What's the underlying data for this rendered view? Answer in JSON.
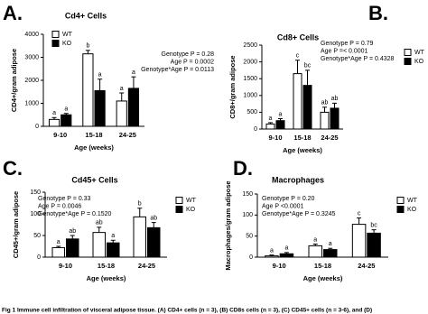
{
  "chart_data": [
    {
      "type": "bar",
      "panel": "A.",
      "title": "Cd4+ Cells",
      "ylabel": "CD4+/gram adipose",
      "xlabel": "Age (weeks)",
      "categories": [
        "9-10",
        "15-18",
        "24-25"
      ],
      "series": [
        {
          "name": "WT",
          "color": "#ffffff",
          "values": [
            300,
            3150,
            1100
          ],
          "errors": [
            80,
            150,
            350
          ],
          "letters": [
            "a",
            "b",
            "a"
          ]
        },
        {
          "name": "KO",
          "color": "#000000",
          "values": [
            500,
            1550,
            1650
          ],
          "errors": [
            60,
            500,
            500
          ],
          "letters": [
            "a",
            "a",
            "a"
          ]
        }
      ],
      "ylim": [
        0,
        4000
      ],
      "yticks": [
        0,
        1000,
        2000,
        3000,
        4000
      ],
      "stats": [
        "Genotype P = 0.28",
        "Age P = 0.0002",
        "Genotype*Age P = 0.0113"
      ]
    },
    {
      "type": "bar",
      "panel": "B.",
      "title": "Cd8+ Cells",
      "ylabel": "CD8+/gram adipose",
      "xlabel": "Age (weeks)",
      "categories": [
        "9-10",
        "15-18",
        "24-25"
      ],
      "series": [
        {
          "name": "WT",
          "color": "#ffffff",
          "values": [
            150,
            1650,
            500
          ],
          "errors": [
            40,
            400,
            150
          ],
          "letters": [
            "a",
            "c",
            "ab"
          ]
        },
        {
          "name": "KO",
          "color": "#000000",
          "values": [
            250,
            1300,
            620
          ],
          "errors": [
            60,
            450,
            150
          ],
          "letters": [
            "a",
            "bc",
            "ab"
          ]
        }
      ],
      "ylim": [
        0,
        2500
      ],
      "yticks": [
        0,
        500,
        1000,
        1500,
        2000,
        2500
      ],
      "stats": [
        "Genotype P = 0.79",
        "Age P =< 0.0001",
        "Genotype*Age P = 0.4328"
      ]
    },
    {
      "type": "bar",
      "panel": "C.",
      "title": "Cd45+ Cells",
      "ylabel": "CD45+/gram adipose",
      "xlabel": "Age (weeks)",
      "categories": [
        "9-10",
        "15-18",
        "24-25"
      ],
      "series": [
        {
          "name": "WT",
          "color": "#ffffff",
          "values": [
            22,
            57,
            93
          ],
          "errors": [
            3,
            12,
            20
          ],
          "letters": [
            "a",
            "ab",
            "b"
          ]
        },
        {
          "name": "KO",
          "color": "#000000",
          "values": [
            42,
            33,
            68
          ],
          "errors": [
            8,
            6,
            12
          ],
          "letters": [
            "ab",
            "a",
            "ab"
          ]
        }
      ],
      "ylim": [
        0,
        150
      ],
      "yticks": [
        0,
        50,
        100,
        150
      ],
      "stats": [
        "Genotype P = 0.33",
        "Age P = 0.0046",
        "Genotype*Age P = 0.1520"
      ]
    },
    {
      "type": "bar",
      "panel": "D.",
      "title": "Macrophages",
      "ylabel": "Macrophages/gram adipose",
      "xlabel": "Age (weeks)",
      "categories": [
        "9-10",
        "15-18",
        "24-25"
      ],
      "series": [
        {
          "name": "WT",
          "color": "#ffffff",
          "values": [
            3,
            27,
            78
          ],
          "errors": [
            2,
            4,
            15
          ],
          "letters": [
            "a",
            "a",
            "c"
          ]
        },
        {
          "name": "KO",
          "color": "#000000",
          "values": [
            8,
            18,
            57
          ],
          "errors": [
            3,
            3,
            8
          ],
          "letters": [
            "a",
            "a",
            "bc"
          ]
        }
      ],
      "ylim": [
        0,
        150
      ],
      "yticks": [
        0,
        50,
        100,
        150
      ],
      "stats": [
        "Genotype P = 0.20",
        "Age P <0.0001",
        "Genotype*Age P = 0.3245"
      ]
    }
  ],
  "caption": "Fig 1  Immune cell infiltration of visceral adipose tissue. (A) CD4+ cells (n = 3), (B) CD8s cells (n = 3), (C) CD45+ cells (n = 3-6), and (D)"
}
